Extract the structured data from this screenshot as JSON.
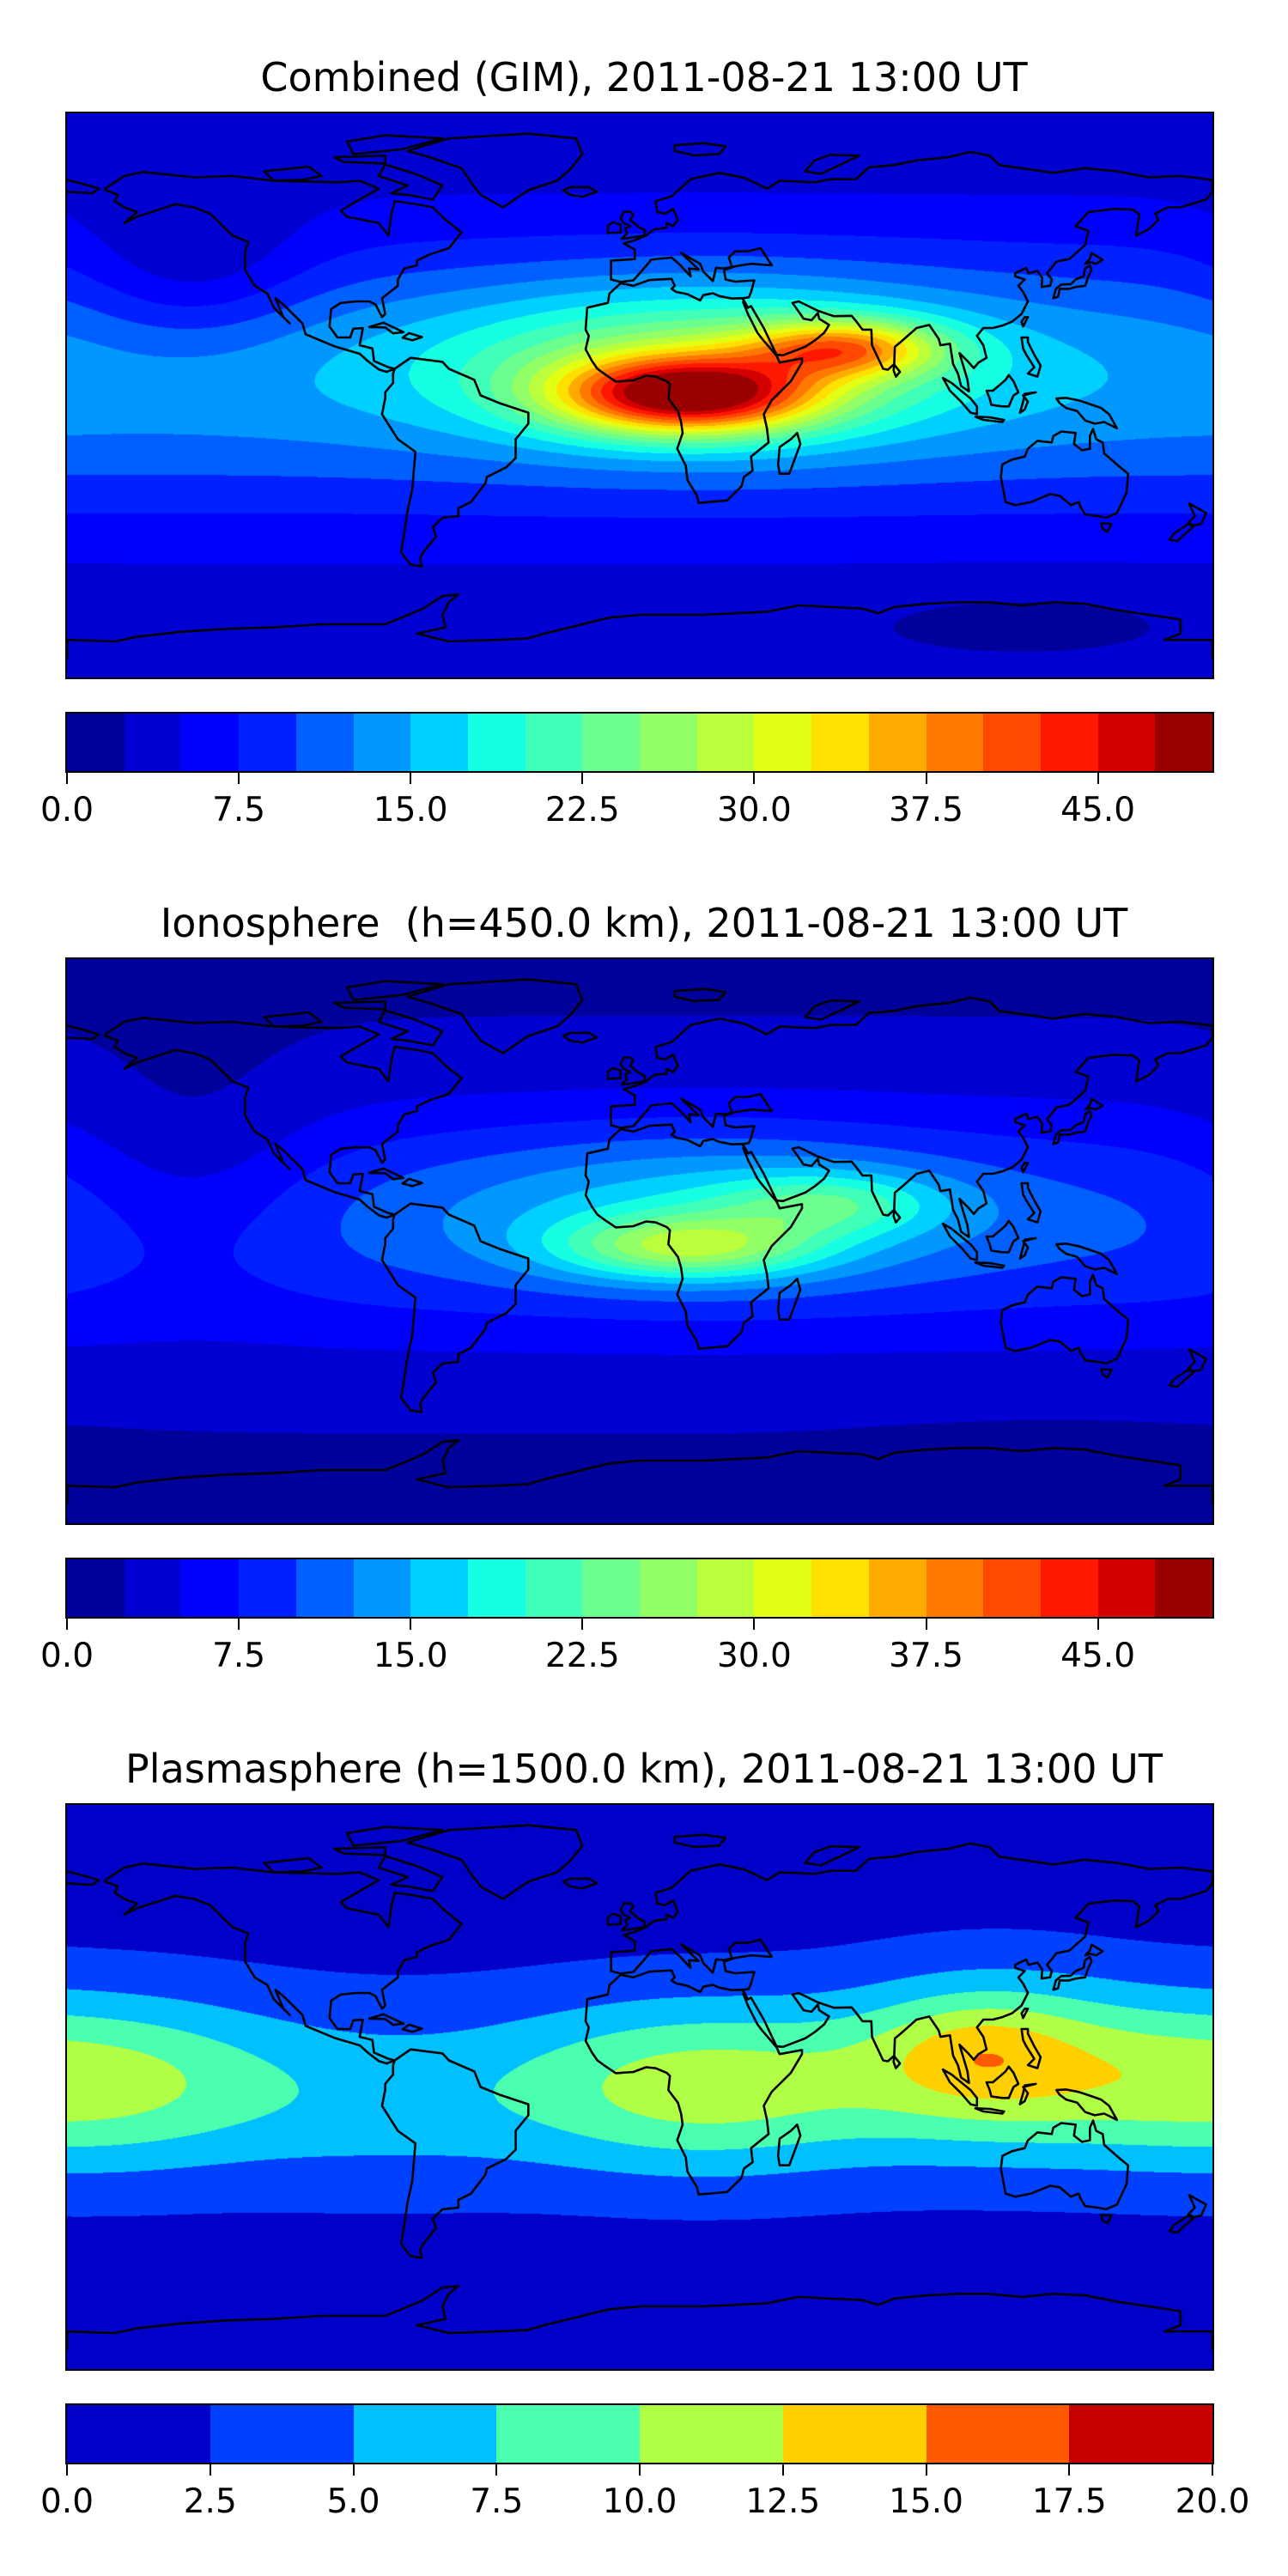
{
  "chart_data": [
    {
      "type": "heatmap",
      "title": "Combined (GIM), 2011-08-21 13:00 UT",
      "xlim": [
        -180,
        180
      ],
      "ylim": [
        -90,
        90
      ],
      "colorbar": {
        "range": [
          0,
          50
        ],
        "levels_step": 2.5,
        "ticks": [
          0,
          7.5,
          15,
          22.5,
          30,
          37.5,
          45
        ],
        "tick_labels": [
          "0.0",
          "7.5",
          "15.0",
          "22.5",
          "30.0",
          "37.5",
          "45.0"
        ],
        "colors": [
          "#00009a",
          "#0000d0",
          "#0000ff",
          "#0020ff",
          "#0060ff",
          "#0098ff",
          "#00d0ff",
          "#16ffe2",
          "#40ffb8",
          "#6aff8e",
          "#92ff66",
          "#bbff3c",
          "#e2ff14",
          "#ffe000",
          "#ffaa00",
          "#ff7800",
          "#ff4800",
          "#ff1800",
          "#d40000",
          "#9a0000"
        ]
      },
      "field_model": {
        "base": {
          "offset": 3,
          "amplitude": 11,
          "lat_center": 5,
          "sigma_lat": 45
        },
        "blobs": [
          {
            "lon": 15,
            "lat": 0,
            "sigma_lon": 40,
            "sigma_lat": 12,
            "amplitude": 30
          },
          {
            "lon": 65,
            "lat": 15,
            "sigma_lon": 30,
            "sigma_lat": 9,
            "amplitude": 18
          },
          {
            "lon": 20,
            "lat": 10,
            "sigma_lon": 80,
            "sigma_lat": 25,
            "amplitude": 13
          },
          {
            "lon": -140,
            "lat": 40,
            "sigma_lon": 35,
            "sigma_lat": 25,
            "amplitude": -5
          },
          {
            "lon": 120,
            "lat": -72,
            "sigma_lon": 50,
            "sigma_lat": 10,
            "amplitude": -2
          }
        ]
      }
    },
    {
      "type": "heatmap",
      "title": "Ionosphere  (h=450.0 km), 2011-08-21 13:00 UT",
      "xlim": [
        -180,
        180
      ],
      "ylim": [
        -90,
        90
      ],
      "colorbar": {
        "range": [
          0,
          50
        ],
        "levels_step": 2.5,
        "ticks": [
          0,
          7.5,
          15,
          22.5,
          30,
          37.5,
          45
        ],
        "tick_labels": [
          "0.0",
          "7.5",
          "15.0",
          "22.5",
          "30.0",
          "37.5",
          "45.0"
        ],
        "colors": [
          "#00009a",
          "#0000d0",
          "#0000ff",
          "#0020ff",
          "#0060ff",
          "#0098ff",
          "#00d0ff",
          "#16ffe2",
          "#40ffb8",
          "#6aff8e",
          "#92ff66",
          "#bbff3c",
          "#e2ff14",
          "#ffe000",
          "#ffaa00",
          "#ff7800",
          "#ff4800",
          "#ff1800",
          "#d40000",
          "#9a0000"
        ]
      },
      "field_model": {
        "base": {
          "offset": 2,
          "amplitude": 8,
          "lat_center": 5,
          "sigma_lat": 40
        },
        "blobs": [
          {
            "lon": 15,
            "lat": -2,
            "sigma_lon": 40,
            "sigma_lat": 10,
            "amplitude": 14
          },
          {
            "lon": 60,
            "lat": 12,
            "sigma_lon": 35,
            "sigma_lat": 10,
            "amplitude": 8
          },
          {
            "lon": 20,
            "lat": 10,
            "sigma_lon": 80,
            "sigma_lat": 25,
            "amplitude": 7
          },
          {
            "lon": -140,
            "lat": 20,
            "sigma_lon": 40,
            "sigma_lat": 35,
            "amplitude": -4
          },
          {
            "lon": 130,
            "lat": -72,
            "sigma_lon": 50,
            "sigma_lat": 10,
            "amplitude": -2
          }
        ]
      }
    },
    {
      "type": "heatmap",
      "title": "Plasmasphere (h=1500.0 km), 2011-08-21 13:00 UT",
      "xlim": [
        -180,
        180
      ],
      "ylim": [
        -90,
        90
      ],
      "colorbar": {
        "range": [
          0,
          20
        ],
        "levels_step": 2.5,
        "ticks": [
          0,
          2.5,
          5,
          7.5,
          10,
          12.5,
          15,
          17.5,
          20
        ],
        "tick_labels": [
          "0.0",
          "2.5",
          "5.0",
          "7.5",
          "10.0",
          "12.5",
          "15.0",
          "17.5",
          "20.0"
        ],
        "colors": [
          "#0000c8",
          "#0040ff",
          "#00c0ff",
          "#4affb0",
          "#b0ff46",
          "#ffd000",
          "#ff5a00",
          "#c40000"
        ]
      },
      "field_model": {
        "base": {
          "offset": 1.5,
          "amplitude": 3,
          "lat_center": 0,
          "sigma_lat": 30
        },
        "blobs": [
          {
            "lon": -175,
            "lat": 2,
            "sigma_lon": 60,
            "sigma_lat": 27,
            "amplitude": 7
          },
          {
            "lon": 20,
            "lat": 0,
            "sigma_lon": 60,
            "sigma_lat": 27,
            "amplitude": 7
          },
          {
            "lon": 110,
            "lat": 10,
            "sigma_lon": 45,
            "sigma_lat": 27,
            "amplitude": 7
          },
          {
            "lon": -80,
            "lat": -10,
            "sigma_lon": 50,
            "sigma_lat": 27,
            "amplitude": 1.5
          },
          {
            "lon": 105,
            "lat": 12,
            "sigma_lon": 25,
            "sigma_lat": 14,
            "amplitude": 2
          }
        ]
      }
    }
  ]
}
